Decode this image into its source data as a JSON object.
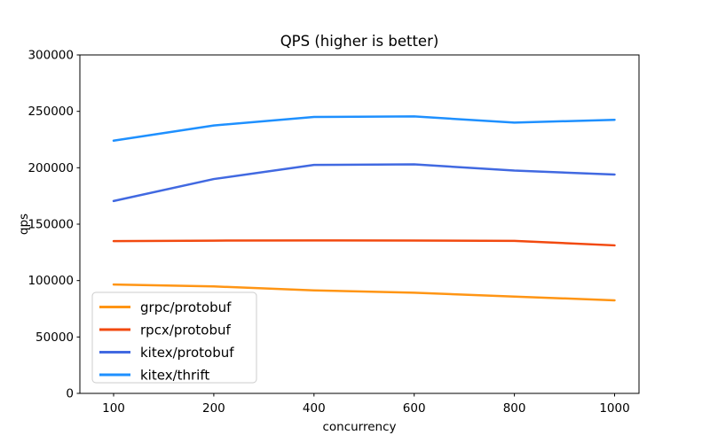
{
  "chart_data": {
    "type": "line",
    "title": "QPS (higher is better)",
    "xlabel": "concurrency",
    "ylabel": "qps",
    "categories": [
      "100",
      "200",
      "400",
      "600",
      "800",
      "1000"
    ],
    "ylim": [
      0,
      300000
    ],
    "yticks": [
      0,
      50000,
      100000,
      150000,
      200000,
      250000,
      300000
    ],
    "grid": false,
    "legend_position": "lower-left",
    "legend_border_color": "#cccccc",
    "axis_color": "#000000",
    "series": [
      {
        "name": "grpc/protobuf",
        "color": "#FF9514",
        "values": [
          96500,
          94800,
          91300,
          89200,
          85800,
          82500
        ]
      },
      {
        "name": "rpcx/protobuf",
        "color": "#F2490F",
        "values": [
          135000,
          135400,
          135600,
          135500,
          135200,
          131200
        ]
      },
      {
        "name": "kitex/protobuf",
        "color": "#4169E1",
        "values": [
          170500,
          190000,
          202500,
          203000,
          197500,
          194000
        ]
      },
      {
        "name": "kitex/thrift",
        "color": "#1E90FF",
        "values": [
          224000,
          237500,
          245000,
          245500,
          240000,
          242500
        ]
      }
    ]
  }
}
